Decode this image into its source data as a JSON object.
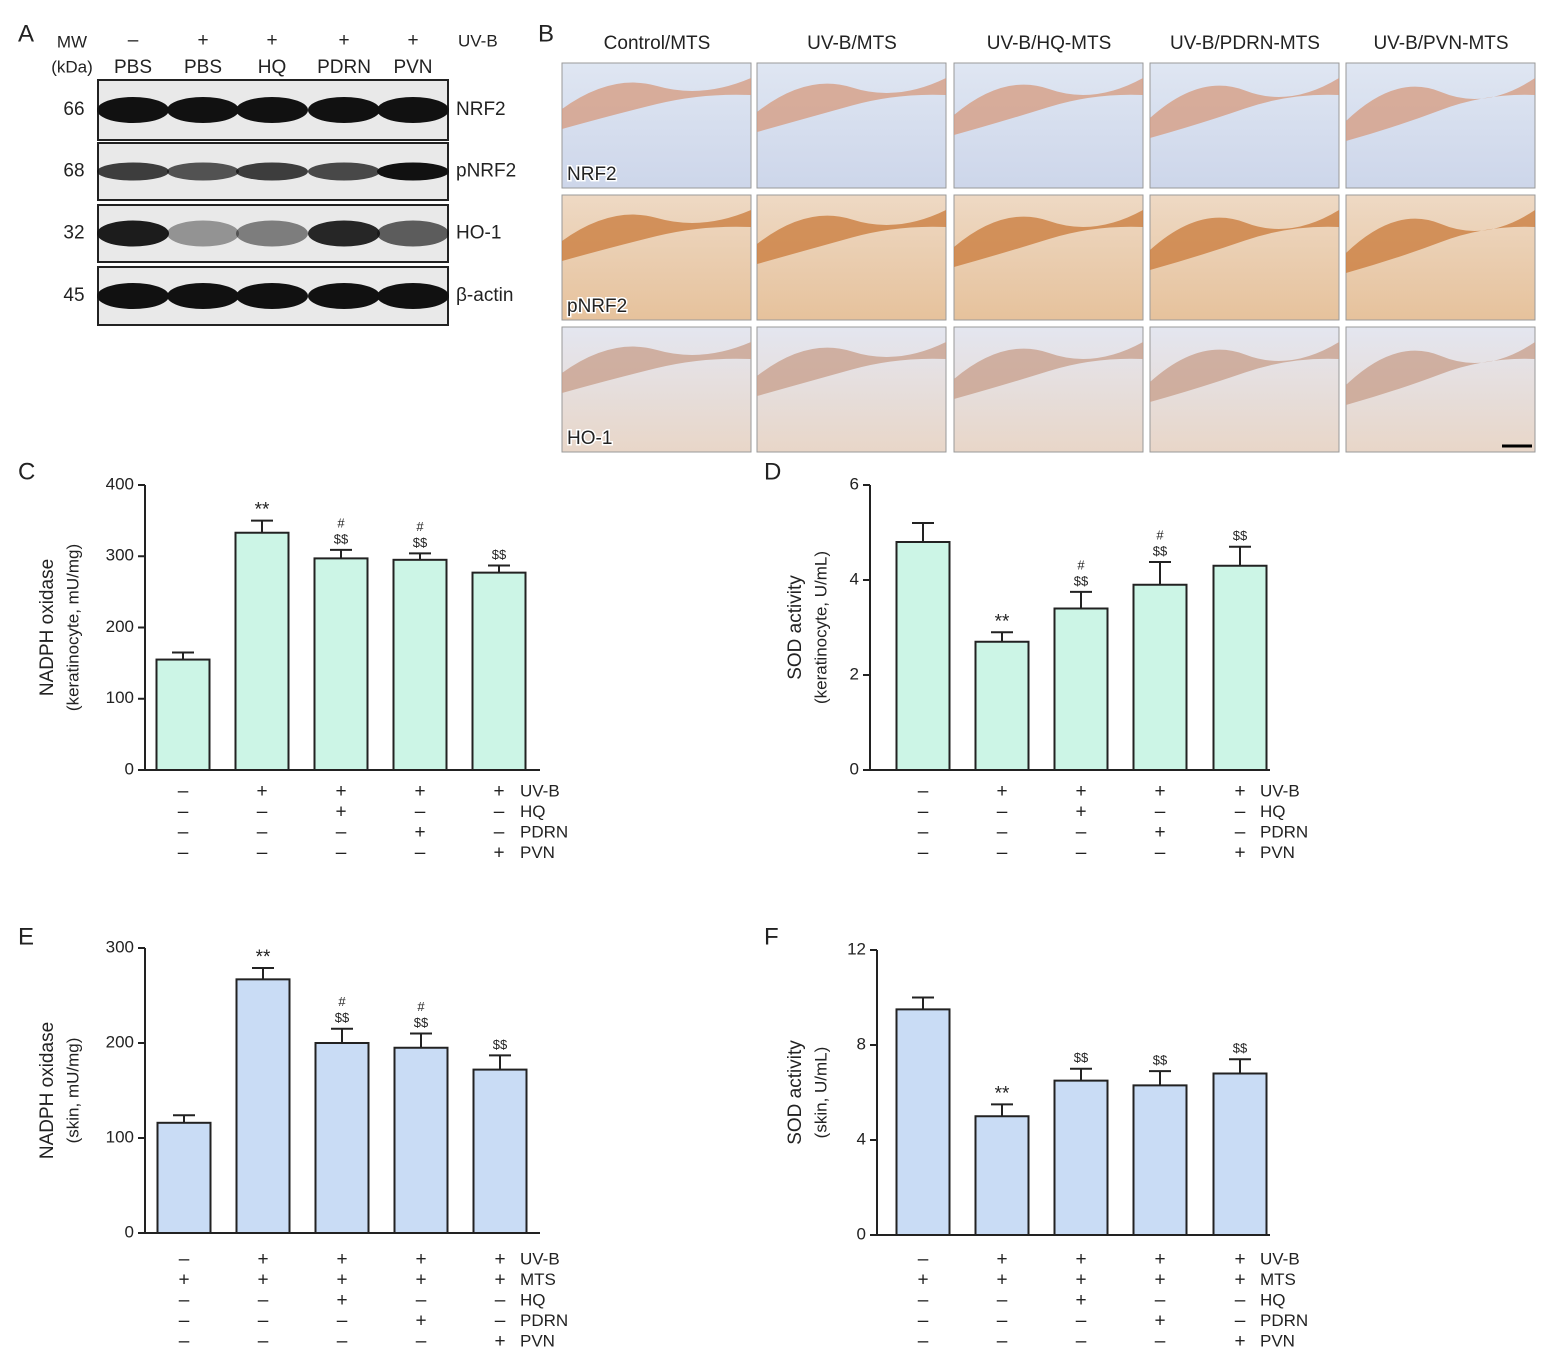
{
  "blot": {
    "panel": "A",
    "mw_header": [
      "MW",
      "(kDa)"
    ],
    "factor": "UV-B",
    "signs": [
      "–",
      "+",
      "+",
      "+",
      "+"
    ],
    "treatments": [
      "PBS",
      "PBS",
      "HQ",
      "PDRN",
      "PVN"
    ],
    "rows": [
      {
        "mw": 66,
        "name": "NRF2"
      },
      {
        "mw": 68,
        "name": "pNRF2"
      },
      {
        "mw": 32,
        "name": "HO-1"
      },
      {
        "mw": 45,
        "name": "β-actin"
      }
    ]
  },
  "histology": {
    "panel": "B",
    "columns": [
      "Control/MTS",
      "UV-B/MTS",
      "UV-B/HQ-MTS",
      "UV-B/PDRN-MTS",
      "UV-B/PVN-MTS"
    ],
    "rows": [
      "NRF2",
      "pNRF2",
      "HO-1"
    ]
  },
  "chart_data": [
    {
      "type": "bar",
      "panel": "C",
      "ylabel": [
        "NADPH oxidase",
        "(keratinocyte, mU/mg)"
      ],
      "color": "#ccf5e6",
      "values": [
        155,
        333,
        297,
        295,
        277
      ],
      "errors": [
        10,
        17,
        12,
        9,
        10
      ],
      "annotations": [
        null,
        [
          "**"
        ],
        [
          "#",
          "$$"
        ],
        [
          "#",
          "$$"
        ],
        [
          "$$"
        ]
      ],
      "ylim": [
        0,
        400
      ],
      "yticks": [
        0,
        100,
        200,
        300,
        400
      ],
      "conditions": [
        {
          "name": "UV-B",
          "signs": [
            "–",
            "+",
            "+",
            "+",
            "+"
          ]
        },
        {
          "name": "HQ",
          "signs": [
            "–",
            "–",
            "+",
            "–",
            "–"
          ]
        },
        {
          "name": "PDRN",
          "signs": [
            "–",
            "–",
            "–",
            "+",
            "–"
          ]
        },
        {
          "name": "PVN",
          "signs": [
            "–",
            "–",
            "–",
            "–",
            "+"
          ]
        }
      ]
    },
    {
      "type": "bar",
      "panel": "D",
      "ylabel": [
        "SOD activity",
        "(keratinocyte, U/mL)"
      ],
      "color": "#ccf5e6",
      "values": [
        4.8,
        2.7,
        3.4,
        3.9,
        4.3
      ],
      "errors": [
        0.4,
        0.2,
        0.35,
        0.48,
        0.4
      ],
      "annotations": [
        null,
        [
          "**"
        ],
        [
          "#",
          "$$"
        ],
        [
          "#",
          "$$"
        ],
        [
          "$$"
        ]
      ],
      "ylim": [
        0,
        6
      ],
      "yticks": [
        0,
        2,
        4,
        6
      ],
      "conditions": [
        {
          "name": "UV-B",
          "signs": [
            "–",
            "+",
            "+",
            "+",
            "+"
          ]
        },
        {
          "name": "HQ",
          "signs": [
            "–",
            "–",
            "+",
            "–",
            "–"
          ]
        },
        {
          "name": "PDRN",
          "signs": [
            "–",
            "–",
            "–",
            "+",
            "–"
          ]
        },
        {
          "name": "PVN",
          "signs": [
            "–",
            "–",
            "–",
            "–",
            "+"
          ]
        }
      ]
    },
    {
      "type": "bar",
      "panel": "E",
      "ylabel": [
        "NADPH oxidase",
        "(skin, mU/mg)"
      ],
      "color": "#c9dcf5",
      "values": [
        116,
        267,
        200,
        195,
        172
      ],
      "errors": [
        8,
        12,
        15,
        15,
        15
      ],
      "annotations": [
        null,
        [
          "**"
        ],
        [
          "#",
          "$$"
        ],
        [
          "#",
          "$$"
        ],
        [
          "$$"
        ]
      ],
      "ylim": [
        0,
        300
      ],
      "yticks": [
        0,
        100,
        200,
        300
      ],
      "conditions": [
        {
          "name": "UV-B",
          "signs": [
            "–",
            "+",
            "+",
            "+",
            "+"
          ]
        },
        {
          "name": "MTS",
          "signs": [
            "+",
            "+",
            "+",
            "+",
            "+"
          ]
        },
        {
          "name": "HQ",
          "signs": [
            "–",
            "–",
            "+",
            "–",
            "–"
          ]
        },
        {
          "name": "PDRN",
          "signs": [
            "–",
            "–",
            "–",
            "+",
            "–"
          ]
        },
        {
          "name": "PVN",
          "signs": [
            "–",
            "–",
            "–",
            "–",
            "+"
          ]
        }
      ]
    },
    {
      "type": "bar",
      "panel": "F",
      "ylabel": [
        "SOD activity",
        "(skin, U/mL)"
      ],
      "color": "#c9dcf5",
      "values": [
        9.5,
        5.0,
        6.5,
        6.3,
        6.8
      ],
      "errors": [
        0.5,
        0.5,
        0.5,
        0.6,
        0.6
      ],
      "annotations": [
        null,
        [
          "**"
        ],
        [
          "$$"
        ],
        [
          "$$"
        ],
        [
          "$$"
        ]
      ],
      "ylim": [
        0,
        12
      ],
      "yticks": [
        0,
        4,
        8,
        12
      ],
      "conditions": [
        {
          "name": "UV-B",
          "signs": [
            "–",
            "+",
            "+",
            "+",
            "+"
          ]
        },
        {
          "name": "MTS",
          "signs": [
            "+",
            "+",
            "+",
            "+",
            "+"
          ]
        },
        {
          "name": "HQ",
          "signs": [
            "–",
            "–",
            "+",
            "–",
            "–"
          ]
        },
        {
          "name": "PDRN",
          "signs": [
            "–",
            "–",
            "–",
            "+",
            "–"
          ]
        },
        {
          "name": "PVN",
          "signs": [
            "–",
            "–",
            "–",
            "–",
            "+"
          ]
        }
      ]
    }
  ]
}
